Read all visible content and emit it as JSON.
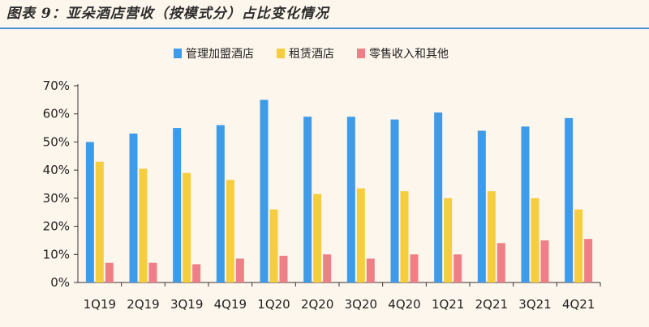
{
  "figure": {
    "title": "图表 9：亚朵酒店营收（按模式分）占比变化情况"
  },
  "chart_data": {
    "type": "bar",
    "categories": [
      "1Q19",
      "2Q19",
      "3Q19",
      "4Q19",
      "1Q20",
      "2Q20",
      "3Q20",
      "4Q20",
      "1Q21",
      "2Q21",
      "3Q21",
      "4Q21"
    ],
    "series": [
      {
        "name": "管理加盟酒店",
        "color": "#3d9be9",
        "values": [
          50,
          53,
          55,
          56,
          65,
          59,
          59,
          58,
          60.5,
          54,
          55.5,
          58.5
        ]
      },
      {
        "name": "租赁酒店",
        "color": "#f5cd3f",
        "values": [
          43,
          40.5,
          39,
          36.5,
          26,
          31.5,
          33.5,
          32.5,
          30,
          32.5,
          30,
          26
        ]
      },
      {
        "name": "零售收入和其他",
        "color": "#ef7f86",
        "values": [
          7,
          7,
          6.5,
          8.5,
          9.5,
          10,
          8.5,
          10,
          10,
          14,
          15,
          15.5
        ]
      }
    ],
    "yticks": [
      "0%",
      "10%",
      "20%",
      "30%",
      "40%",
      "50%",
      "60%",
      "70%"
    ],
    "ylim": [
      0,
      70
    ],
    "legend_position": "top-center",
    "grid": false
  }
}
